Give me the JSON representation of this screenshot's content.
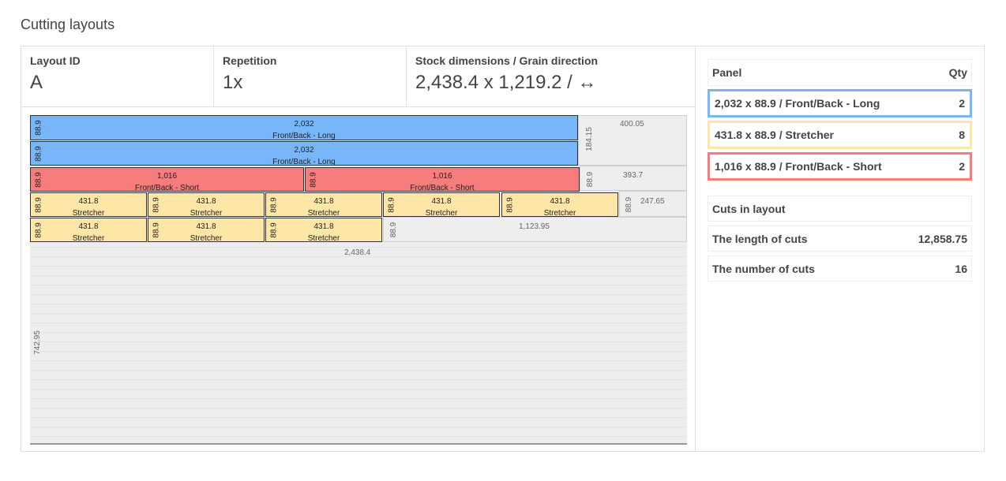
{
  "page": {
    "title": "Cutting layouts"
  },
  "layout": {
    "id_label": "Layout ID",
    "id_value": "A",
    "repetition_label": "Repetition",
    "repetition_value": "1x",
    "stock_label": "Stock dimensions / Grain direction",
    "stock_value": "2,438.4 x 1,219.2 / ↔"
  },
  "colors": {
    "long": "#77b7f9",
    "stretcher": "#fde6a6",
    "short": "#f77c7c"
  },
  "diagram": {
    "pieces": [
      {
        "w": "2,032",
        "h": "88.9",
        "name": "Front/Back - Long"
      },
      {
        "w": "2,032",
        "h": "88.9",
        "name": "Front/Back - Long"
      },
      {
        "w": "1,016",
        "h": "88.9",
        "name": "Front/Back - Short"
      },
      {
        "w": "1,016",
        "h": "88.9",
        "name": "Front/Back - Short"
      },
      {
        "w": "431.8",
        "h": "88.9",
        "name": "Stretcher"
      },
      {
        "w": "431.8",
        "h": "88.9",
        "name": "Stretcher"
      },
      {
        "w": "431.8",
        "h": "88.9",
        "name": "Stretcher"
      },
      {
        "w": "431.8",
        "h": "88.9",
        "name": "Stretcher"
      },
      {
        "w": "431.8",
        "h": "88.9",
        "name": "Stretcher"
      },
      {
        "w": "431.8",
        "h": "88.9",
        "name": "Stretcher"
      },
      {
        "w": "431.8",
        "h": "88.9",
        "name": "Stretcher"
      },
      {
        "w": "431.8",
        "h": "88.9",
        "name": "Stretcher"
      }
    ],
    "offcuts": {
      "o1_w": "400.05",
      "o1_h": "184.15",
      "o2_w": "393.7",
      "o2_h": "88.9",
      "o3_w": "247.65",
      "o3_h": "88.9",
      "o4_w": "1,123.95",
      "o4_h": "88.9",
      "rest_w": "2,438.4",
      "rest_h": "742.95"
    }
  },
  "panels": {
    "header_panel": "Panel",
    "header_qty": "Qty",
    "rows": [
      {
        "label": "2,032 x 88.9 / Front/Back - Long",
        "qty": "2"
      },
      {
        "label": "431.8 x 88.9 / Stretcher",
        "qty": "8"
      },
      {
        "label": "1,016 x 88.9 / Front/Back - Short",
        "qty": "2"
      }
    ]
  },
  "summary": {
    "title": "Cuts in layout",
    "length_label": "The length of cuts",
    "length_value": "12,858.75",
    "count_label": "The number of cuts",
    "count_value": "16"
  }
}
